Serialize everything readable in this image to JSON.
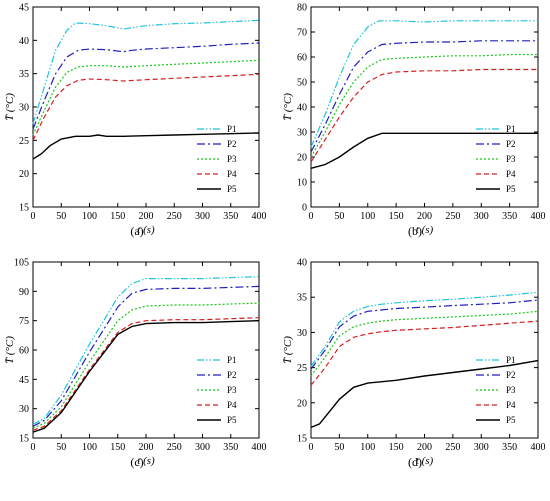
{
  "chart_data": [
    {
      "type": "line",
      "label": "(a)",
      "xlabel": "t (s)",
      "ylabel": "T̄ (°C)",
      "xlim": [
        0,
        400
      ],
      "ylim": [
        15,
        45
      ],
      "xticks": [
        0,
        50,
        100,
        150,
        200,
        250,
        300,
        350,
        400
      ],
      "yticks": [
        15,
        20,
        25,
        30,
        35,
        40,
        45
      ],
      "legend_position": "lower-right",
      "series": [
        {
          "name": "P1",
          "x": [
            0,
            20,
            40,
            60,
            75,
            100,
            130,
            160,
            175,
            200,
            250,
            300,
            350,
            400
          ],
          "y": [
            27.5,
            33,
            38.5,
            41.5,
            42.6,
            42.5,
            42.2,
            41.7,
            41.9,
            42.2,
            42.5,
            42.6,
            42.8,
            43.0
          ]
        },
        {
          "name": "P2",
          "x": [
            0,
            20,
            40,
            60,
            80,
            100,
            130,
            160,
            175,
            200,
            250,
            300,
            350,
            400
          ],
          "y": [
            26.7,
            31,
            35,
            37.5,
            38.5,
            38.7,
            38.6,
            38.3,
            38.5,
            38.7,
            38.9,
            39.1,
            39.4,
            39.6
          ]
        },
        {
          "name": "P3",
          "x": [
            0,
            20,
            40,
            60,
            80,
            100,
            130,
            160,
            200,
            250,
            300,
            350,
            400
          ],
          "y": [
            25.8,
            29.5,
            33,
            35.2,
            36.0,
            36.2,
            36.2,
            36.0,
            36.2,
            36.4,
            36.6,
            36.8,
            37.0
          ]
        },
        {
          "name": "P4",
          "x": [
            0,
            20,
            40,
            60,
            80,
            100,
            130,
            160,
            200,
            250,
            300,
            350,
            400
          ],
          "y": [
            25.0,
            28.5,
            31.5,
            33.2,
            34.0,
            34.2,
            34.1,
            33.9,
            34.1,
            34.3,
            34.5,
            34.7,
            34.9
          ]
        },
        {
          "name": "P5",
          "x": [
            0,
            15,
            30,
            50,
            75,
            100,
            115,
            130,
            160,
            200,
            250,
            300,
            350,
            400
          ],
          "y": [
            22.2,
            23.0,
            24.2,
            25.2,
            25.6,
            25.6,
            25.8,
            25.6,
            25.6,
            25.7,
            25.8,
            25.9,
            26.0,
            26.1
          ]
        }
      ]
    },
    {
      "type": "line",
      "label": "(b)",
      "xlabel": "t (s)",
      "ylabel": "T̄ (°C)",
      "xlim": [
        0,
        400
      ],
      "ylim": [
        0,
        80
      ],
      "xticks": [
        0,
        50,
        100,
        150,
        200,
        250,
        300,
        350,
        400
      ],
      "yticks": [
        0,
        10,
        20,
        30,
        40,
        50,
        60,
        70,
        80
      ],
      "legend_position": "lower-right",
      "series": [
        {
          "name": "P1",
          "x": [
            0,
            25,
            50,
            75,
            100,
            120,
            150,
            200,
            250,
            300,
            350,
            400
          ],
          "y": [
            24,
            37,
            52,
            65,
            72,
            74.5,
            74.5,
            74,
            74.5,
            74.5,
            74.5,
            74.5
          ]
        },
        {
          "name": "P2",
          "x": [
            0,
            25,
            50,
            75,
            100,
            125,
            150,
            200,
            250,
            300,
            350,
            400
          ],
          "y": [
            22,
            33,
            45,
            56,
            62,
            65,
            65.5,
            66,
            66,
            66.5,
            66.5,
            66.5
          ]
        },
        {
          "name": "P3",
          "x": [
            0,
            25,
            50,
            75,
            100,
            125,
            150,
            200,
            250,
            300,
            350,
            400
          ],
          "y": [
            20,
            30,
            41,
            50,
            56,
            59,
            59.5,
            60,
            60.5,
            60.5,
            61,
            61
          ]
        },
        {
          "name": "P4",
          "x": [
            0,
            25,
            50,
            75,
            100,
            125,
            150,
            200,
            250,
            300,
            350,
            400
          ],
          "y": [
            18,
            27,
            36,
            44,
            50,
            53,
            54,
            54.5,
            54.5,
            55,
            55,
            55
          ]
        },
        {
          "name": "P5",
          "x": [
            0,
            25,
            50,
            75,
            100,
            125,
            150,
            200,
            250,
            300,
            350,
            400
          ],
          "y": [
            15.5,
            17,
            20,
            24,
            27.5,
            29.5,
            29.5,
            29.5,
            29.5,
            29.5,
            29.5,
            29.5
          ]
        }
      ]
    },
    {
      "type": "line",
      "label": "(c)",
      "xlabel": "t (s)",
      "ylabel": "T̄ (°C)",
      "xlim": [
        0,
        400
      ],
      "ylim": [
        15,
        105
      ],
      "xticks": [
        0,
        50,
        100,
        150,
        200,
        250,
        300,
        350,
        400
      ],
      "yticks": [
        15,
        30,
        45,
        60,
        75,
        90,
        105
      ],
      "legend_position": "lower-right",
      "series": [
        {
          "name": "P1",
          "x": [
            0,
            20,
            50,
            100,
            150,
            175,
            200,
            250,
            300,
            350,
            400
          ],
          "y": [
            22,
            25,
            37,
            63,
            87,
            94,
            96.5,
            96.5,
            96.5,
            97,
            97.5
          ]
        },
        {
          "name": "P2",
          "x": [
            0,
            20,
            50,
            100,
            150,
            175,
            200,
            250,
            300,
            350,
            400
          ],
          "y": [
            21,
            24,
            34,
            59,
            82,
            89,
            91,
            91.5,
            91.5,
            92,
            92.5
          ]
        },
        {
          "name": "P3",
          "x": [
            0,
            20,
            50,
            100,
            150,
            175,
            200,
            250,
            300,
            350,
            400
          ],
          "y": [
            20,
            22.5,
            31,
            54,
            75,
            80.5,
            82.5,
            83,
            83,
            83.5,
            84
          ]
        },
        {
          "name": "P4",
          "x": [
            0,
            20,
            50,
            100,
            150,
            175,
            200,
            250,
            300,
            350,
            400
          ],
          "y": [
            19,
            21,
            29,
            50,
            69,
            73.5,
            75,
            75.5,
            75.5,
            76,
            76.5
          ]
        },
        {
          "name": "P5",
          "x": [
            0,
            20,
            50,
            100,
            150,
            175,
            200,
            250,
            300,
            350,
            400
          ],
          "y": [
            18,
            20,
            28,
            49,
            68,
            72,
            73.5,
            74,
            74,
            74.5,
            75
          ]
        }
      ]
    },
    {
      "type": "line",
      "label": "(d)",
      "xlabel": "t (s)",
      "ylabel": "T̄ (°C)",
      "xlim": [
        0,
        400
      ],
      "ylim": [
        15,
        40
      ],
      "xticks": [
        0,
        50,
        100,
        150,
        200,
        250,
        300,
        350,
        400
      ],
      "yticks": [
        15,
        20,
        25,
        30,
        35,
        40
      ],
      "legend_position": "lower-right",
      "series": [
        {
          "name": "P1",
          "x": [
            0,
            25,
            50,
            75,
            100,
            125,
            150,
            200,
            250,
            300,
            350,
            400
          ],
          "y": [
            25.2,
            28,
            31.5,
            33,
            33.7,
            34,
            34.2,
            34.5,
            34.7,
            35,
            35.3,
            35.7
          ]
        },
        {
          "name": "P2",
          "x": [
            0,
            25,
            50,
            75,
            100,
            125,
            150,
            200,
            250,
            300,
            350,
            400
          ],
          "y": [
            24.8,
            27.5,
            30.8,
            32.3,
            33,
            33.2,
            33.4,
            33.6,
            33.8,
            34,
            34.2,
            34.6
          ]
        },
        {
          "name": "P3",
          "x": [
            0,
            25,
            50,
            75,
            100,
            125,
            150,
            200,
            250,
            300,
            350,
            400
          ],
          "y": [
            23.8,
            26.5,
            29.5,
            30.8,
            31.3,
            31.6,
            31.8,
            32,
            32.2,
            32.4,
            32.6,
            33
          ]
        },
        {
          "name": "P4",
          "x": [
            0,
            25,
            50,
            75,
            100,
            125,
            150,
            200,
            250,
            300,
            350,
            400
          ],
          "y": [
            22.5,
            25,
            28,
            29.3,
            29.8,
            30.1,
            30.3,
            30.5,
            30.7,
            31,
            31.3,
            31.6
          ]
        },
        {
          "name": "P5",
          "x": [
            0,
            15,
            30,
            50,
            75,
            100,
            125,
            150,
            200,
            250,
            300,
            350,
            400
          ],
          "y": [
            16.5,
            17,
            18.5,
            20.5,
            22.2,
            22.8,
            23,
            23.2,
            23.8,
            24.3,
            24.8,
            25.3,
            26
          ]
        }
      ]
    }
  ],
  "styles": {
    "P1": {
      "color": "#22c4d9",
      "dash": "7,2,1.5,2,1.5,2"
    },
    "P2": {
      "color": "#1f1fbf",
      "dash": "8,3,2,3"
    },
    "P3": {
      "color": "#19c619",
      "dash": "2,2"
    },
    "P4": {
      "color": "#d62020",
      "dash": "5,3"
    },
    "P5": {
      "color": "#000000",
      "dash": ""
    }
  }
}
